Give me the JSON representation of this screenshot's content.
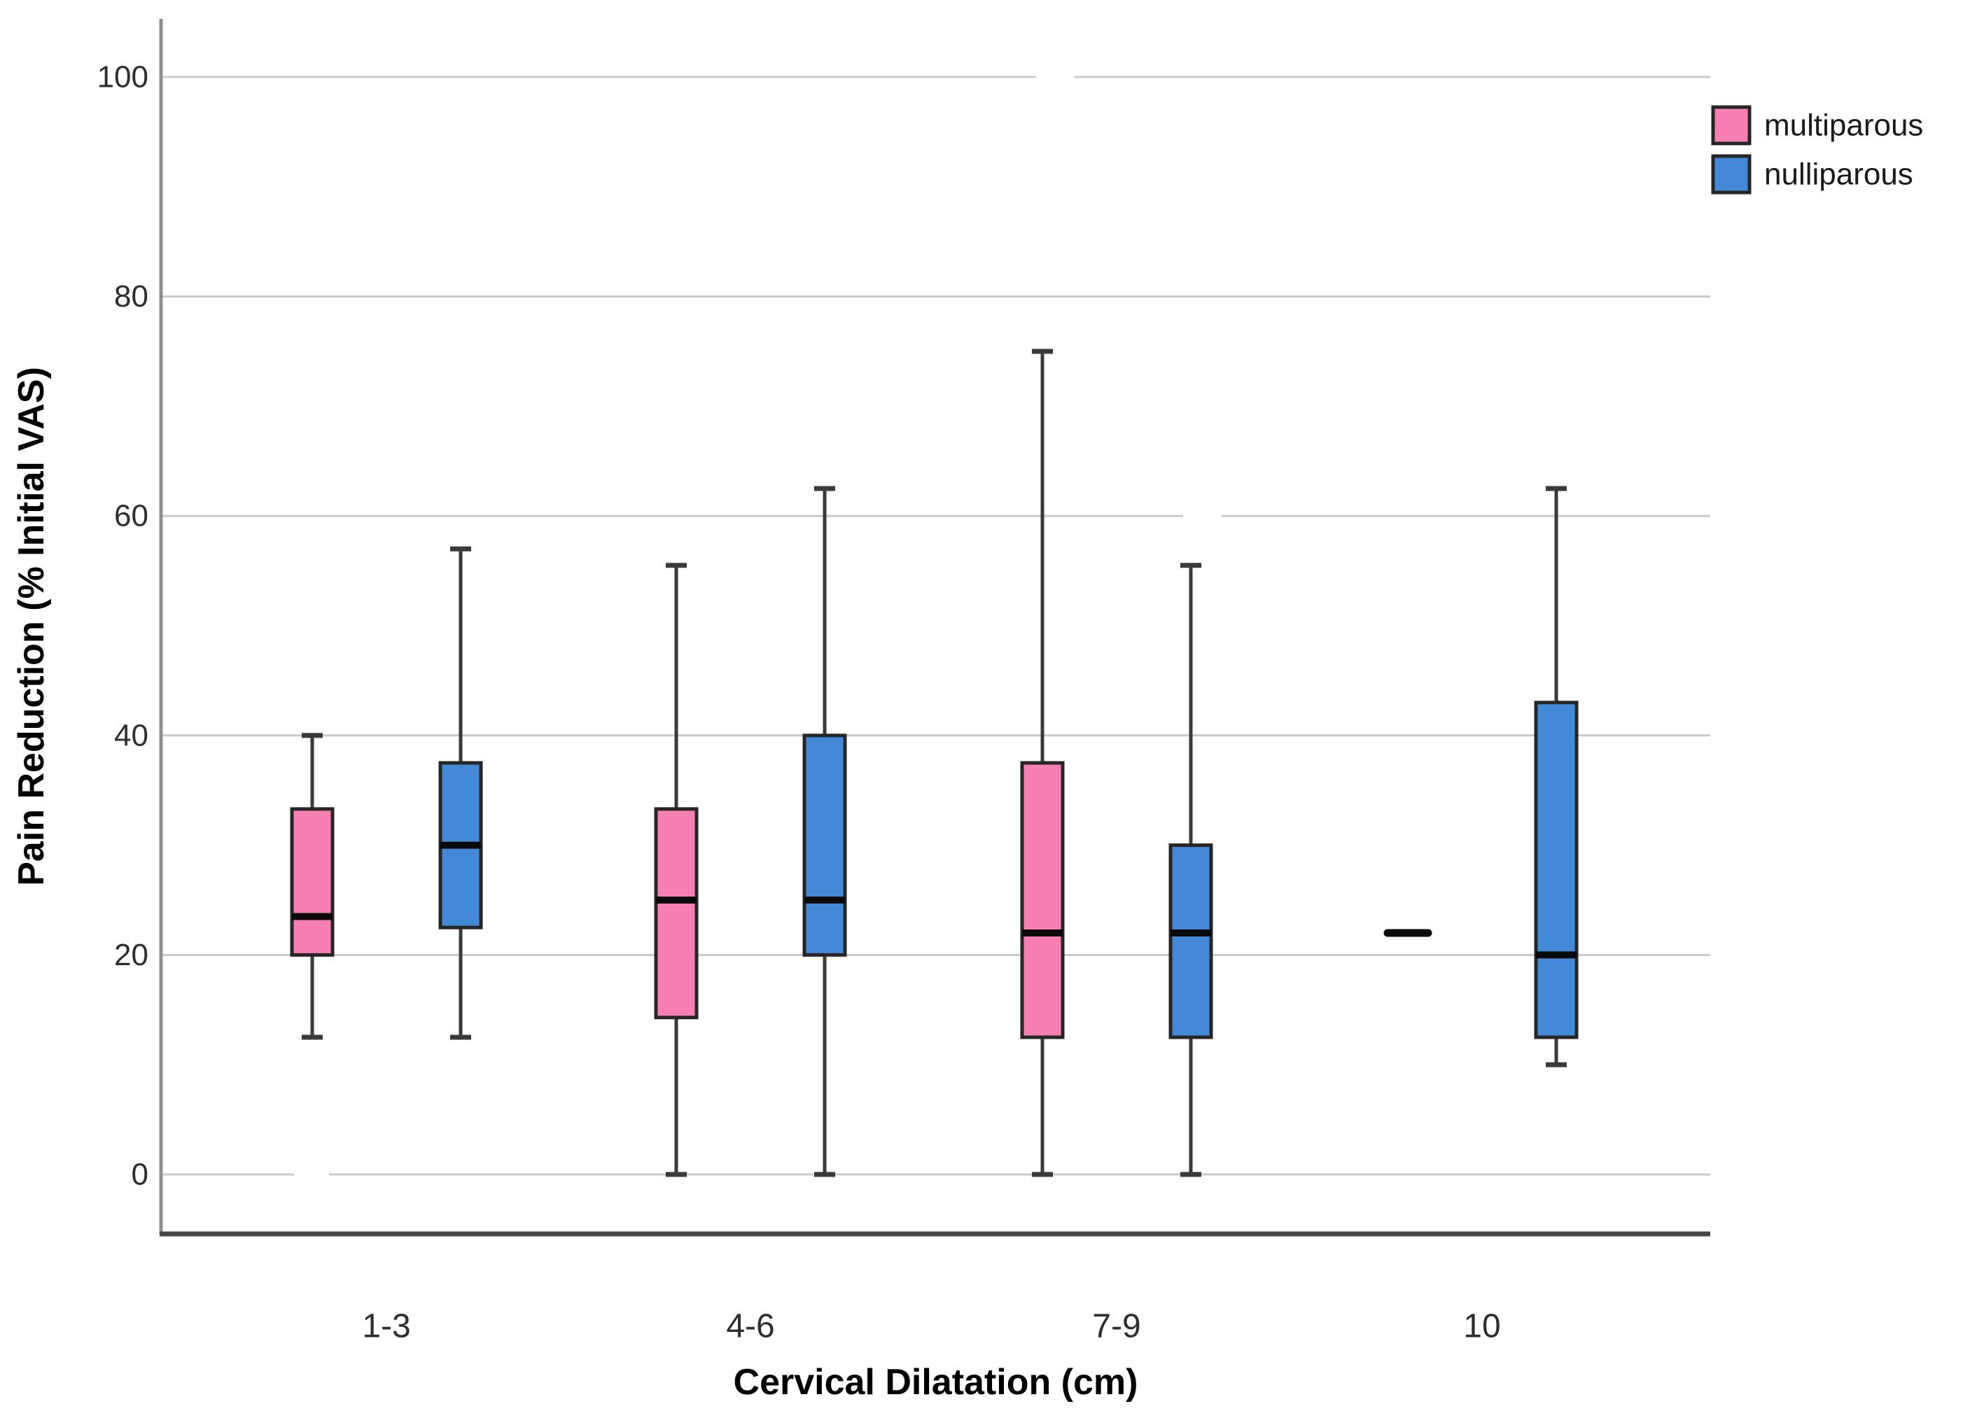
{
  "figure": {
    "background": "#ffffff"
  },
  "chart_data": {
    "type": "boxplot",
    "title": "",
    "xlabel": "Cervical Dilatation (cm)",
    "ylabel": "Pain Reduction (% Initial VAS)",
    "categories": [
      "1-3",
      "4-6",
      "7-9",
      "10"
    ],
    "yticks": [
      0,
      20,
      40,
      60,
      80,
      100
    ],
    "ylim": [
      0,
      100
    ],
    "grid": true,
    "legend_position": "top-right",
    "legend": [
      {
        "label": "multiparous",
        "color": "#F77FB2"
      },
      {
        "label": "nulliparous",
        "color": "#4489D8"
      }
    ],
    "series": [
      {
        "name": "multiparous",
        "fill": "#F77FB2",
        "boxes": [
          {
            "category": "1-3",
            "min": 12.5,
            "q1": 20,
            "median": 23.5,
            "q3": 33.3,
            "max": 40
          },
          {
            "category": "4-6",
            "min": 0,
            "q1": 14.3,
            "median": 25,
            "q3": 33.3,
            "max": 55.5
          },
          {
            "category": "7-9",
            "min": 0,
            "q1": 12.5,
            "median": 22,
            "q3": 37.5,
            "max": 75
          },
          {
            "category": "10",
            "median": 22,
            "median_only": true
          }
        ]
      },
      {
        "name": "nulliparous",
        "fill": "#4489D8",
        "boxes": [
          {
            "category": "1-3",
            "min": 12.5,
            "q1": 22.5,
            "median": 30,
            "q3": 37.5,
            "max": 57
          },
          {
            "category": "4-6",
            "min": 0,
            "q1": 20,
            "median": 25,
            "q3": 40,
            "max": 62.5
          },
          {
            "category": "7-9",
            "min": 0,
            "q1": 12.5,
            "median": 22,
            "q3": 30,
            "max": 55.5
          },
          {
            "category": "10",
            "min": 10,
            "q1": 12.5,
            "median": 20,
            "q3": 43,
            "max": 62.5
          }
        ]
      }
    ],
    "style_colors": {
      "gridline": "#c9c9c9",
      "y_axis_line": "#8f8f8f",
      "x_axis_line": "#454545",
      "box_border": "#262626",
      "whisker": "#3a3a3a",
      "median": "#0a0a0a",
      "tick_text": "#2e2e2e",
      "title_text": "#000000"
    }
  }
}
